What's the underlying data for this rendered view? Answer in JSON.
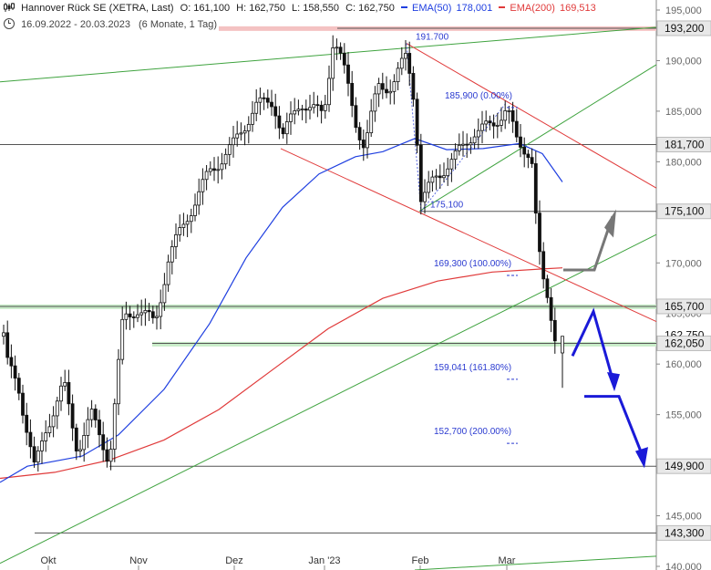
{
  "header": {
    "icon": "candlestick-chart-icon",
    "title": "Hannover Rück SE (XETRA, Last)",
    "open": "O: 161,100",
    "high": "H: 162,750",
    "low": "L: 158,550",
    "close": "C: 162,750",
    "ema50_label": "EMA(50)",
    "ema50_value": "178,001",
    "ema200_label": "EMA(200)",
    "ema200_value": "169,513",
    "clock_icon": "clock-icon",
    "range": "16.09.2022 - 20.03.2023",
    "period": "(6 Monate, 1 Tag)"
  },
  "colors": {
    "ema50": "#1f3fe0",
    "ema200": "#e03a3a",
    "trend_green": "#3fa33f",
    "trend_red": "#e03a3a",
    "fib_text": "#2a3ad0",
    "arrow_blue": "#1a1ad8",
    "arrow_gray": "#777777",
    "zone_green": "#c8ecc8",
    "zone_red": "#f4c2c2"
  },
  "chart_data": {
    "type": "candlestick",
    "title": "Hannover Rück SE (XETRA, Last)",
    "x_ticks": [
      "Okt",
      "Nov",
      "Dez",
      "Jan '23",
      "Feb",
      "Mar"
    ],
    "y_ticks": [
      195000,
      190000,
      185000,
      180000,
      175000,
      170000,
      165000,
      160000,
      155000,
      150000,
      145000,
      140000
    ],
    "y_tick_labels": [
      "195,000",
      "190,000",
      "185,000",
      "180,000",
      "175,000",
      "170,000",
      "165,000",
      "160,000",
      "155,000",
      "150,000",
      "145,000",
      "140,000"
    ],
    "ylim": [
      140000,
      196000
    ],
    "level_boxes": [
      {
        "value": 193200,
        "label": "193,200"
      },
      {
        "value": 181700,
        "label": "181,700"
      },
      {
        "value": 175100,
        "label": "175,100"
      },
      {
        "value": 165700,
        "label": "165,700"
      },
      {
        "value": 162050,
        "label": "162,050"
      },
      {
        "value": 149900,
        "label": "149,900"
      },
      {
        "value": 143300,
        "label": "143,300"
      }
    ],
    "hidden_last_price_label": "162,750",
    "annotations": [
      {
        "text": "191.700",
        "value": 191700
      },
      {
        "text": "185,900 (0.00%)",
        "value": 185900
      },
      {
        "text": "175,100",
        "value": 175100
      },
      {
        "text": "169,300 (100.00%)",
        "value": 169300
      },
      {
        "text": "159,041 (161.80%)",
        "value": 159041
      },
      {
        "text": "152,700 (200.00%)",
        "value": 152700
      }
    ],
    "series": [
      {
        "name": "EMA(50)",
        "values_at_ticks": [
          150000,
          151000,
          157000,
          174000,
          181000,
          180000,
          178001
        ]
      },
      {
        "name": "EMA(200)",
        "values_at_ticks": [
          148700,
          149400,
          153000,
          161000,
          167500,
          169300,
          169513
        ]
      }
    ],
    "last_candle": {
      "open": 161100,
      "high": 162750,
      "low": 158550,
      "close": 162750
    }
  }
}
